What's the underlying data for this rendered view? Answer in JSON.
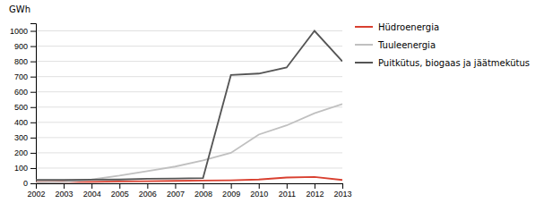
{
  "chart_data": {
    "type": "line",
    "y_label": "GWh",
    "x": [
      2002,
      2003,
      2004,
      2005,
      2006,
      2007,
      2008,
      2009,
      2010,
      2011,
      2012,
      2013
    ],
    "xlim": [
      2002,
      2013
    ],
    "xticks": [
      2002,
      2003,
      2004,
      2005,
      2006,
      2007,
      2008,
      2009,
      2010,
      2011,
      2012,
      2013
    ],
    "ylim": [
      0,
      1050
    ],
    "yticks": [
      0,
      100,
      200,
      300,
      400,
      500,
      600,
      700,
      800,
      900,
      1000
    ],
    "grid": true,
    "legend": "right",
    "series": [
      {
        "name": "Hüdroenergia",
        "color": "#d94030",
        "values": [
          8,
          10,
          10,
          12,
          14,
          16,
          18,
          20,
          25,
          38,
          42,
          22
        ]
      },
      {
        "name": "Tuuleenergia",
        "color": "#c0c0c0",
        "values": [
          5,
          8,
          25,
          50,
          80,
          110,
          150,
          200,
          320,
          380,
          460,
          520
        ]
      },
      {
        "name": "Puitkütus, biogaas ja jäätmekütus",
        "color": "#555555",
        "values": [
          22,
          22,
          24,
          25,
          30,
          32,
          35,
          710,
          720,
          760,
          1000,
          800
        ]
      }
    ]
  }
}
